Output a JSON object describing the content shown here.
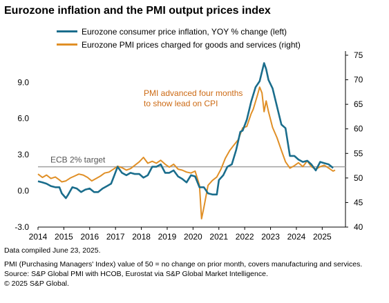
{
  "title": "Eurozone inflation and the PMI output prices index",
  "legend": [
    {
      "label": "Eurozone consumer price inflation, YOY % change (left)",
      "color": "#1a6d8c"
    },
    {
      "label": "Eurozone PMI prices charged for goods and services (right)",
      "color": "#e08f26"
    }
  ],
  "annotation": [
    "PMI advanced four months",
    "to show lead on CPI"
  ],
  "reference_label": "ECB 2% target",
  "footer": {
    "compiled": "Data compiled June 23, 2025.",
    "note": "PMI (Purchasing Managers' Index) value of 50 = no change on prior month, covers manufacturing and services.",
    "source": "Source: S&P Global PMI with HCOB, Eurostat via S&P Global Market Intelligence.",
    "copyright": "© 2025 S&P Global."
  },
  "chart_data": {
    "type": "line",
    "x_ticks": [
      "2014",
      "2015",
      "2016",
      "2017",
      "2018",
      "2019",
      "2020",
      "2021",
      "2022",
      "2023",
      "2024",
      "2025"
    ],
    "y_left_ticks": [
      "-3.0",
      "0.0",
      "3.0",
      "6.0",
      "9.0"
    ],
    "y_right_ticks": [
      "40",
      "45",
      "50",
      "55",
      "60",
      "65",
      "70",
      "75"
    ],
    "y_left_range": [
      -3,
      11.25
    ],
    "y_right_range": [
      40,
      75
    ],
    "reference_line": {
      "axis": "left",
      "value": 2.0
    },
    "series": [
      {
        "name": "Eurozone consumer price inflation, YOY % change (left)",
        "axis": "left",
        "color": "#1a6d8c",
        "points": [
          [
            2014.0,
            0.8
          ],
          [
            2014.17,
            0.7
          ],
          [
            2014.33,
            0.6
          ],
          [
            2014.5,
            0.4
          ],
          [
            2014.67,
            0.3
          ],
          [
            2014.83,
            0.3
          ],
          [
            2014.92,
            -0.2
          ],
          [
            2015.08,
            -0.6
          ],
          [
            2015.17,
            -0.3
          ],
          [
            2015.33,
            0.3
          ],
          [
            2015.5,
            0.2
          ],
          [
            2015.67,
            -0.1
          ],
          [
            2015.83,
            0.1
          ],
          [
            2016.0,
            0.2
          ],
          [
            2016.17,
            -0.1
          ],
          [
            2016.33,
            -0.1
          ],
          [
            2016.5,
            0.2
          ],
          [
            2016.67,
            0.4
          ],
          [
            2016.83,
            0.6
          ],
          [
            2016.92,
            1.1
          ],
          [
            2017.08,
            2.0
          ],
          [
            2017.25,
            1.5
          ],
          [
            2017.42,
            1.3
          ],
          [
            2017.58,
            1.5
          ],
          [
            2017.75,
            1.4
          ],
          [
            2017.92,
            1.4
          ],
          [
            2018.08,
            1.1
          ],
          [
            2018.25,
            1.3
          ],
          [
            2018.42,
            2.0
          ],
          [
            2018.58,
            2.0
          ],
          [
            2018.75,
            2.2
          ],
          [
            2018.92,
            1.5
          ],
          [
            2019.08,
            1.5
          ],
          [
            2019.25,
            1.7
          ],
          [
            2019.42,
            1.2
          ],
          [
            2019.58,
            1.0
          ],
          [
            2019.75,
            0.7
          ],
          [
            2019.92,
            1.3
          ],
          [
            2020.08,
            1.2
          ],
          [
            2020.25,
            0.3
          ],
          [
            2020.42,
            0.3
          ],
          [
            2020.58,
            -0.2
          ],
          [
            2020.75,
            -0.3
          ],
          [
            2020.92,
            -0.3
          ],
          [
            2021.0,
            0.9
          ],
          [
            2021.17,
            1.3
          ],
          [
            2021.33,
            2.0
          ],
          [
            2021.5,
            2.2
          ],
          [
            2021.67,
            3.4
          ],
          [
            2021.83,
            4.9
          ],
          [
            2021.92,
            5.0
          ],
          [
            2022.08,
            5.9
          ],
          [
            2022.25,
            7.4
          ],
          [
            2022.42,
            8.6
          ],
          [
            2022.58,
            9.1
          ],
          [
            2022.75,
            10.6
          ],
          [
            2022.83,
            10.1
          ],
          [
            2022.92,
            9.2
          ],
          [
            2023.08,
            8.5
          ],
          [
            2023.25,
            7.0
          ],
          [
            2023.42,
            5.5
          ],
          [
            2023.58,
            5.2
          ],
          [
            2023.75,
            2.9
          ],
          [
            2023.92,
            2.9
          ],
          [
            2024.08,
            2.6
          ],
          [
            2024.25,
            2.4
          ],
          [
            2024.42,
            2.5
          ],
          [
            2024.58,
            2.2
          ],
          [
            2024.75,
            1.7
          ],
          [
            2024.92,
            2.4
          ],
          [
            2025.08,
            2.3
          ],
          [
            2025.25,
            2.2
          ],
          [
            2025.42,
            1.9
          ]
        ]
      },
      {
        "name": "Eurozone PMI prices charged for goods and services (right)",
        "axis": "right",
        "color": "#e08f26",
        "points": [
          [
            2014.0,
            50.8
          ],
          [
            2014.17,
            50.1
          ],
          [
            2014.33,
            50.6
          ],
          [
            2014.5,
            49.9
          ],
          [
            2014.67,
            50.2
          ],
          [
            2014.83,
            49.6
          ],
          [
            2014.92,
            49.2
          ],
          [
            2015.08,
            49.4
          ],
          [
            2015.25,
            50.0
          ],
          [
            2015.42,
            50.4
          ],
          [
            2015.58,
            50.8
          ],
          [
            2015.75,
            50.6
          ],
          [
            2015.92,
            50.1
          ],
          [
            2016.08,
            49.4
          ],
          [
            2016.25,
            49.9
          ],
          [
            2016.42,
            50.4
          ],
          [
            2016.58,
            51.0
          ],
          [
            2016.75,
            51.2
          ],
          [
            2016.92,
            51.8
          ],
          [
            2017.08,
            52.4
          ],
          [
            2017.25,
            52.1
          ],
          [
            2017.42,
            51.6
          ],
          [
            2017.58,
            51.9
          ],
          [
            2017.75,
            52.6
          ],
          [
            2017.92,
            53.3
          ],
          [
            2018.08,
            54.2
          ],
          [
            2018.25,
            53.0
          ],
          [
            2018.42,
            53.4
          ],
          [
            2018.58,
            53.0
          ],
          [
            2018.75,
            53.6
          ],
          [
            2018.92,
            52.8
          ],
          [
            2019.08,
            52.2
          ],
          [
            2019.25,
            52.8
          ],
          [
            2019.42,
            51.8
          ],
          [
            2019.58,
            51.6
          ],
          [
            2019.75,
            51.2
          ],
          [
            2019.92,
            51.0
          ],
          [
            2020.08,
            51.4
          ],
          [
            2020.25,
            48.5
          ],
          [
            2020.33,
            41.7
          ],
          [
            2020.42,
            44.0
          ],
          [
            2020.58,
            48.5
          ],
          [
            2020.75,
            49.5
          ],
          [
            2020.92,
            50.2
          ],
          [
            2021.08,
            51.8
          ],
          [
            2021.25,
            54.0
          ],
          [
            2021.42,
            55.6
          ],
          [
            2021.58,
            56.7
          ],
          [
            2021.75,
            57.8
          ],
          [
            2021.92,
            60.2
          ],
          [
            2022.08,
            60.5
          ],
          [
            2022.25,
            63.1
          ],
          [
            2022.33,
            64.0
          ],
          [
            2022.5,
            67.0
          ],
          [
            2022.58,
            68.5
          ],
          [
            2022.67,
            67.3
          ],
          [
            2022.75,
            63.5
          ],
          [
            2022.83,
            65.7
          ],
          [
            2022.92,
            63.5
          ],
          [
            2023.08,
            60.3
          ],
          [
            2023.25,
            58.2
          ],
          [
            2023.42,
            55.6
          ],
          [
            2023.58,
            53.3
          ],
          [
            2023.75,
            52.0
          ],
          [
            2023.92,
            52.5
          ],
          [
            2024.08,
            53.1
          ],
          [
            2024.25,
            52.3
          ],
          [
            2024.42,
            53.5
          ],
          [
            2024.58,
            52.3
          ],
          [
            2024.75,
            51.8
          ],
          [
            2024.92,
            52.3
          ],
          [
            2025.08,
            52.6
          ],
          [
            2025.25,
            52.0
          ],
          [
            2025.42,
            51.4
          ],
          [
            2025.5,
            51.6
          ]
        ]
      }
    ]
  }
}
